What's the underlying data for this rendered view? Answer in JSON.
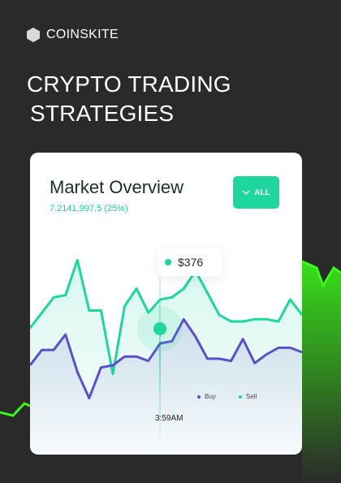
{
  "brand": {
    "name": "COINSKITE",
    "icon": "hexagon-icon"
  },
  "headline": {
    "line1": "CRYPTO TRADING",
    "line2": "STRATEGIES"
  },
  "card": {
    "title": "Market Overview",
    "subtitle": "7.2141,997.5 (25%)",
    "filter_button": {
      "label": "ALL",
      "icon": "chevron-down-icon"
    },
    "tooltip_value": "$376",
    "time_label": "3:59AM",
    "legend": [
      {
        "name": "Buy",
        "color": "#5b50c9"
      },
      {
        "name": "Sell",
        "color": "#1fd69e"
      }
    ]
  },
  "colors": {
    "accent": "#1fd69e",
    "buy": "#5b50c9",
    "neon": "#39ff14",
    "background": "#2a2a2a"
  },
  "chart_data": {
    "type": "line",
    "x": [
      1,
      2,
      3,
      4,
      5,
      6,
      7,
      8,
      9,
      10,
      11,
      12,
      13,
      14,
      15,
      16,
      17,
      18,
      19,
      20,
      21,
      22,
      23,
      24
    ],
    "series": [
      {
        "name": "Sell",
        "values": [
          57,
          64,
          71,
          72,
          88,
          65,
          65,
          36,
          67,
          75,
          64,
          70,
          71,
          75,
          83,
          73,
          63,
          60,
          60,
          61,
          61,
          60,
          70,
          63
        ]
      },
      {
        "name": "Buy",
        "values": [
          40,
          47,
          47,
          54,
          37,
          25,
          39,
          40,
          44,
          44,
          42,
          50,
          51,
          61,
          53,
          43,
          43,
          42,
          52,
          41,
          45,
          48,
          48,
          46
        ]
      }
    ],
    "ylim": [
      0,
      100
    ],
    "grid": false,
    "legend_position": "bottom-right"
  }
}
